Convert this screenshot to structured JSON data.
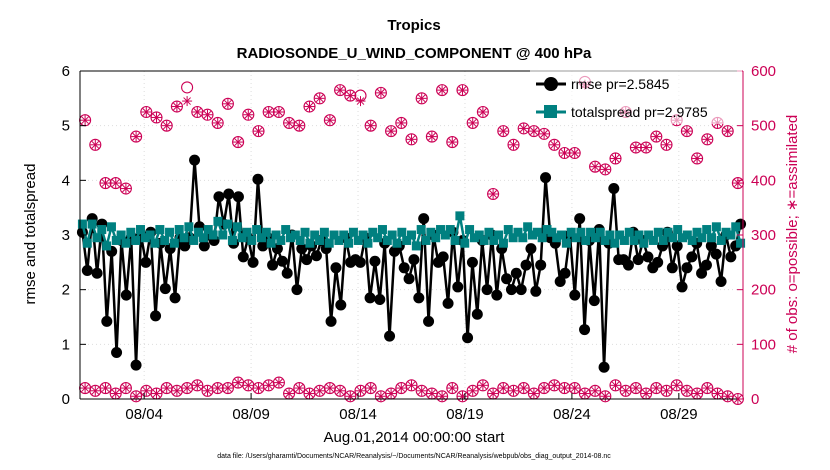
{
  "colors": {
    "rmse": "#000000",
    "spread": "#008080",
    "obs": "#cc0055",
    "axis": "#000000",
    "grid": "#dddddd"
  },
  "chart_data": {
    "type": "line",
    "title": "Tropics",
    "subtitle": "RADIOSONDE_U_WIND_COMPONENT @ 400 hPa",
    "xlabel": "Aug.01,2014 00:00:00 start",
    "ylabel": "rmse and totalspread",
    "ylabel_right": "# of obs: o=possible; ∗=assimilated",
    "footnote": "data file: /Users/gharamti/Documents/NCAR/Reanalysis/~/Documents/NCAR/Reanalysis/webpub/obs_diag_output_2014-08.nc",
    "xlim": [
      0,
      62
    ],
    "ylim": [
      0,
      6
    ],
    "ylim_right": [
      0,
      600
    ],
    "xticks": [
      6,
      16,
      26,
      36,
      46,
      56
    ],
    "xtick_labels": [
      "08/04",
      "08/09",
      "08/14",
      "08/19",
      "08/24",
      "08/29"
    ],
    "yticks": [
      0,
      1,
      2,
      3,
      4,
      5,
      6
    ],
    "ytick_labels": [
      "0",
      "1",
      "2",
      "3",
      "4",
      "5",
      "6"
    ],
    "yticks_right": [
      0,
      100,
      200,
      300,
      400,
      500,
      600
    ],
    "ytick_labels_right": [
      "0",
      "100",
      "200",
      "300",
      "400",
      "500",
      "600"
    ],
    "legend": [
      {
        "label": "rmse pr=2.5845",
        "series": "rmse",
        "marker": "circle"
      },
      {
        "label": "totalspread pr=2.9785",
        "series": "totalspread",
        "marker": "square"
      }
    ],
    "series": [
      {
        "name": "rmse",
        "axis": "left",
        "values": [
          3.05,
          2.35,
          3.3,
          2.3,
          3.2,
          1.42,
          2.7,
          0.85,
          2.9,
          1.9,
          2.95,
          0.62,
          3.0,
          2.5,
          3.05,
          1.52,
          2.85,
          2.02,
          2.75,
          1.85,
          2.95,
          2.8,
          2.95,
          4.37,
          3.15,
          2.8,
          3.0,
          2.9,
          3.7,
          3.2,
          3.75,
          2.85,
          3.7,
          2.6,
          2.95,
          2.5,
          4.02,
          2.8,
          2.95,
          2.45,
          2.75,
          2.52,
          2.3,
          3.0,
          2.0,
          2.75,
          2.55,
          2.8,
          2.62,
          2.9,
          2.75,
          1.42,
          2.4,
          1.72,
          2.95,
          2.5,
          2.55,
          2.5,
          2.95,
          1.85,
          2.52,
          1.82,
          2.85,
          1.15,
          2.7,
          2.8,
          2.4,
          2.2,
          2.55,
          1.85,
          3.3,
          1.42,
          3.0,
          2.5,
          2.6,
          1.75,
          3.05,
          2.05,
          2.9,
          1.12,
          2.5,
          1.55,
          2.9,
          2.0,
          3.0,
          1.9,
          2.75,
          2.2,
          2.0,
          2.3,
          2.0,
          2.45,
          2.75,
          1.97,
          2.45,
          4.05,
          2.95,
          2.85,
          2.15,
          2.3,
          3.0,
          1.9,
          3.3,
          1.27,
          2.9,
          1.8,
          3.1,
          0.58,
          2.85,
          3.85,
          2.55,
          2.55,
          2.45,
          3.05,
          2.55,
          2.9,
          2.6,
          2.4,
          2.5,
          2.8,
          3.05,
          2.4,
          2.8,
          2.05,
          2.4,
          2.6,
          2.85,
          2.3,
          2.45,
          2.8,
          2.65,
          2.15,
          3.0,
          2.6,
          2.8,
          3.2
        ]
      },
      {
        "name": "totalspread",
        "axis": "left",
        "values": [
          3.2,
          2.85,
          3.2,
          2.95,
          3.1,
          2.8,
          3.15,
          2.9,
          3.0,
          2.85,
          3.05,
          2.9,
          3.1,
          2.95,
          3.0,
          2.85,
          3.1,
          2.9,
          3.05,
          2.85,
          3.1,
          2.95,
          3.15,
          2.9,
          3.05,
          2.95,
          3.1,
          3.0,
          3.25,
          3.0,
          3.2,
          2.9,
          3.15,
          2.95,
          3.05,
          2.9,
          3.1,
          2.95,
          3.05,
          2.85,
          3.0,
          2.9,
          3.1,
          2.95,
          3.0,
          2.9,
          3.05,
          2.85,
          3.0,
          2.9,
          3.05,
          2.85,
          3.0,
          2.9,
          3.0,
          2.85,
          3.05,
          2.9,
          3.0,
          2.85,
          3.05,
          2.95,
          3.1,
          2.9,
          3.0,
          2.85,
          3.05,
          2.9,
          3.0,
          2.8,
          3.1,
          2.9,
          3.05,
          2.95,
          3.1,
          3.0,
          3.1,
          2.9,
          3.35,
          2.85,
          3.1,
          2.95,
          3.0,
          2.9,
          3.05,
          2.9,
          3.0,
          2.85,
          3.1,
          2.95,
          3.05,
          2.95,
          3.15,
          3.0,
          3.05,
          2.95,
          3.1,
          3.05,
          2.95,
          3.0,
          2.85,
          3.05,
          2.95,
          3.05,
          2.9,
          3.05,
          2.95,
          3.05,
          2.9,
          3.0,
          2.85,
          3.0,
          2.9,
          3.05,
          2.9,
          3.0,
          2.85,
          3.0,
          2.9,
          3.05,
          2.9,
          3.05,
          2.95,
          3.1,
          2.95,
          3.0,
          2.9,
          3.05,
          2.95,
          3.1,
          2.95,
          3.15,
          2.9,
          3.05,
          3.0,
          3.15,
          2.85
        ]
      },
      {
        "name": "obs_possible",
        "axis": "right",
        "values": [
          510,
          465,
          395,
          395,
          385,
          480,
          525,
          515,
          500,
          535,
          570,
          525,
          520,
          505,
          540,
          470,
          520,
          490,
          525,
          525,
          505,
          500,
          535,
          550,
          510,
          565,
          555,
          555,
          500,
          560,
          490,
          505,
          475,
          550,
          480,
          565,
          470,
          565,
          505,
          525,
          375,
          490,
          465,
          495,
          490,
          485,
          465,
          450,
          450,
          580,
          425,
          420,
          440,
          525,
          460,
          460,
          480,
          465,
          510,
          490,
          440,
          475,
          505,
          490,
          395
        ]
      },
      {
        "name": "obs_assimilated",
        "axis": "right",
        "values": [
          510,
          465,
          395,
          395,
          385,
          480,
          525,
          515,
          500,
          535,
          545,
          525,
          520,
          505,
          540,
          470,
          520,
          490,
          525,
          525,
          505,
          500,
          535,
          550,
          510,
          565,
          555,
          545,
          500,
          560,
          490,
          505,
          475,
          550,
          480,
          565,
          470,
          565,
          505,
          525,
          375,
          490,
          465,
          495,
          490,
          485,
          465,
          450,
          450,
          575,
          425,
          420,
          440,
          525,
          460,
          460,
          480,
          465,
          510,
          490,
          440,
          475,
          505,
          490,
          395
        ]
      },
      {
        "name": "obs_low",
        "axis": "right",
        "values": [
          20,
          15,
          20,
          10,
          20,
          5,
          15,
          10,
          20,
          15,
          20,
          25,
          15,
          20,
          20,
          30,
          25,
          20,
          25,
          30,
          10,
          20,
          10,
          15,
          20,
          15,
          5,
          15,
          20,
          5,
          10,
          20,
          25,
          15,
          10,
          5,
          20,
          5,
          15,
          25,
          10,
          20,
          15,
          20,
          10,
          20,
          25,
          20,
          20,
          10,
          15,
          5,
          25,
          15,
          20,
          10,
          20,
          15,
          25,
          15,
          10,
          20,
          10,
          5,
          0
        ]
      }
    ]
  }
}
